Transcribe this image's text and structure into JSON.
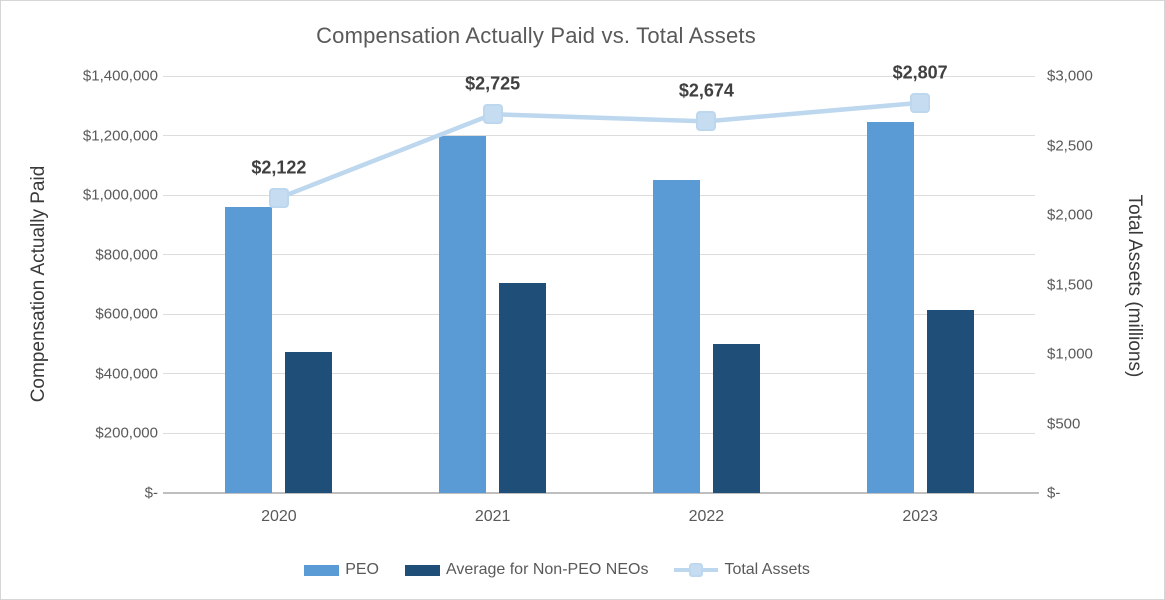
{
  "colors": {
    "peo_bar": "#5B9BD5",
    "non_peo_bar": "#1F4E79",
    "line": "#BDD7EE",
    "marker_fill": "#C6DCF0",
    "grid": "#DCDCDC",
    "axis": "#BFBFBF",
    "text_gray": "#595959",
    "data_label": "#404040"
  },
  "chart_data": {
    "type": "combo-bar-line",
    "title": "Compensation Actually Paid vs. Total Assets",
    "categories": [
      "2020",
      "2021",
      "2022",
      "2023"
    ],
    "bar_series": [
      {
        "name": "PEO",
        "color": "#5B9BD5",
        "values": [
          960000,
          1200000,
          1050000,
          1245000
        ]
      },
      {
        "name": "Average for Non-PEO NEOs",
        "color": "#1F4E79",
        "values": [
          475000,
          705000,
          500000,
          615000
        ]
      }
    ],
    "line_series": {
      "name": "Total Assets",
      "color": "#BDD7EE",
      "axis": "right",
      "values": [
        2122,
        2725,
        2674,
        2807
      ],
      "data_labels": [
        "$2,122",
        "$2,725",
        "$2,674",
        "$2,807"
      ]
    },
    "y_left": {
      "label": "Compensation Actually Paid",
      "min": 0,
      "max": 1400000,
      "ticks": [
        "$1,400,000",
        "$1,200,000",
        "$1,000,000",
        "$800,000",
        "$600,000",
        "$400,000",
        "$200,000",
        "$-"
      ]
    },
    "y_right": {
      "label": "Total Assets (millions)",
      "min": 0,
      "max": 3000,
      "ticks": [
        "$3,000",
        "$2,500",
        "$2,000",
        "$1,500",
        "$1,000",
        "$500",
        "$-"
      ]
    },
    "grid": true,
    "legend_position": "bottom"
  }
}
